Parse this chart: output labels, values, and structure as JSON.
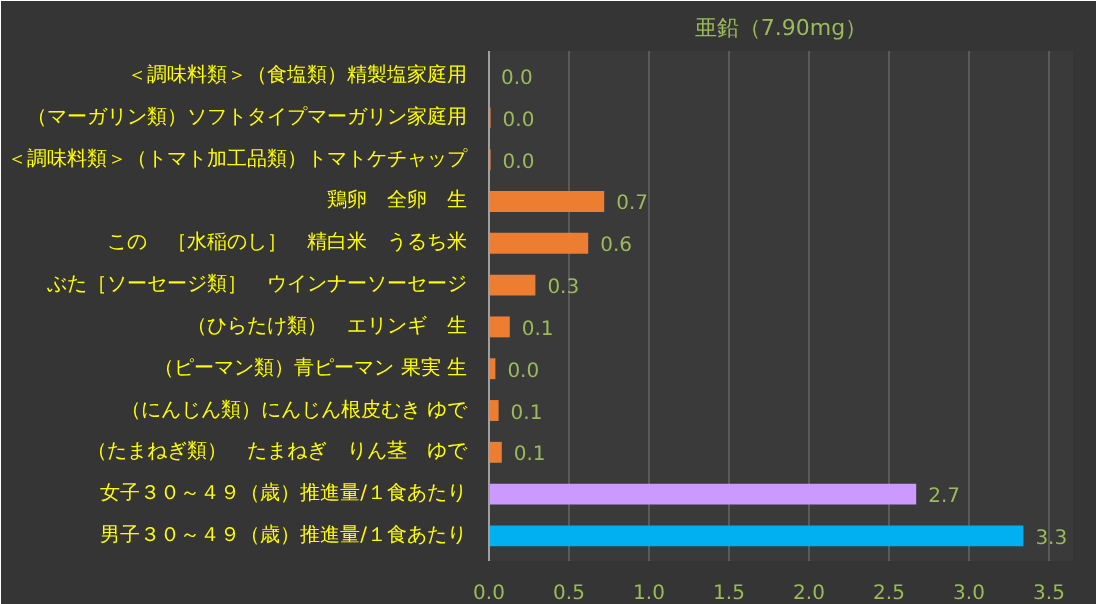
{
  "chart_data": {
    "type": "bar",
    "orientation": "horizontal",
    "title": "亜鉛（7.90mg）",
    "categories": [
      "＜調味料類＞（食塩類）精製塩家庭用",
      "（マーガリン類）ソフトタイプマーガリン家庭用",
      "＜調味料類＞（トマト加工品類）トマトケチャップ",
      "鶏卵　全卵　生",
      "この　［水稲のし］　精白米　うるち米",
      "ぶた［ソーセージ類］　ウインナーソーセージ",
      "（ひらたけ類）　エリンギ　生",
      "（ピーマン類）青ピーマン 果実 生",
      "（にんじん類）にんじん根皮むき ゆで",
      "（たまねぎ類）　たまねぎ　りん茎　ゆで",
      "女子３０～４９（歳）推進量/１食あたり",
      "男子３０～４９（歳）推進量/１食あたり"
    ],
    "values": [
      0.0,
      0.01,
      0.01,
      0.72,
      0.62,
      0.29,
      0.13,
      0.04,
      0.06,
      0.08,
      2.67,
      3.34
    ],
    "value_labels": [
      "0.0",
      "0.0",
      "0.0",
      "0.7",
      "0.6",
      "0.3",
      "0.1",
      "0.0",
      "0.1",
      "0.1",
      "2.7",
      "3.3"
    ],
    "colors": [
      "#ed7d31",
      "#ed7d31",
      "#ed7d31",
      "#ed7d31",
      "#ed7d31",
      "#ed7d31",
      "#ed7d31",
      "#ed7d31",
      "#ed7d31",
      "#ed7d31",
      "#cc99ff",
      "#00b0f0"
    ],
    "xlim": [
      0,
      3.65
    ],
    "xticks": [
      {
        "value": 0,
        "label": "0.0"
      },
      {
        "value": 0.5,
        "label": "0.5"
      },
      {
        "value": 1,
        "label": "1.0"
      },
      {
        "value": 1.5,
        "label": "1.5"
      },
      {
        "value": 2,
        "label": "2.0"
      },
      {
        "value": 2.5,
        "label": "2.5"
      },
      {
        "value": 3,
        "label": "3.0"
      },
      {
        "value": 3.5,
        "label": "3.5"
      }
    ],
    "grid": "x"
  }
}
